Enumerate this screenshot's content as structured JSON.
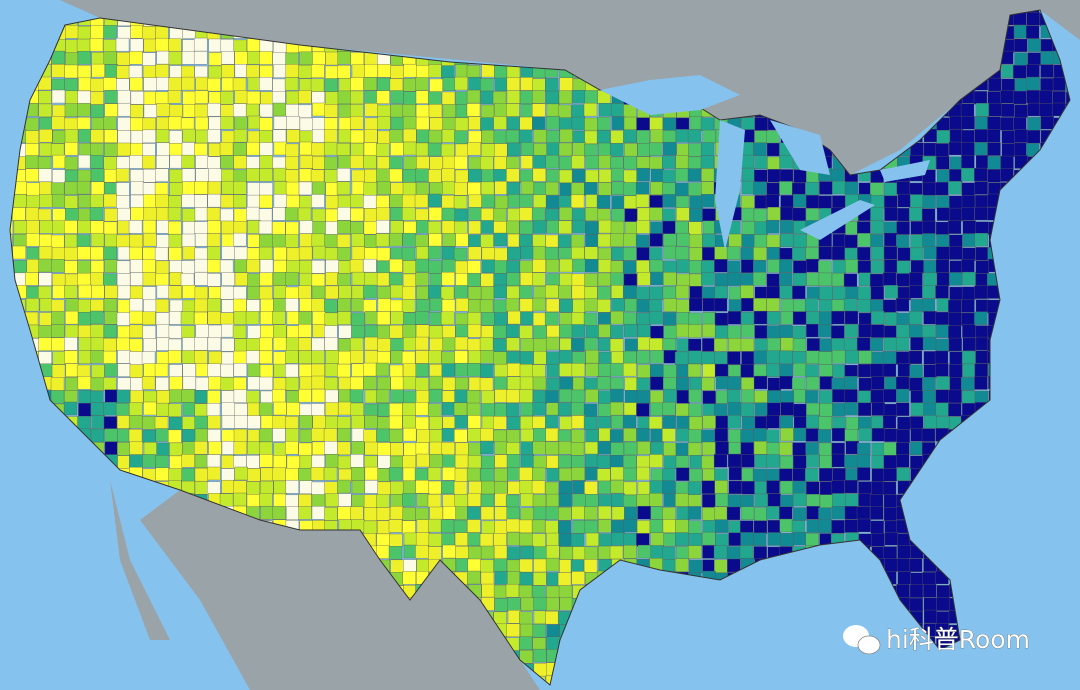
{
  "watermark": {
    "text": "hi科普Room"
  }
}
